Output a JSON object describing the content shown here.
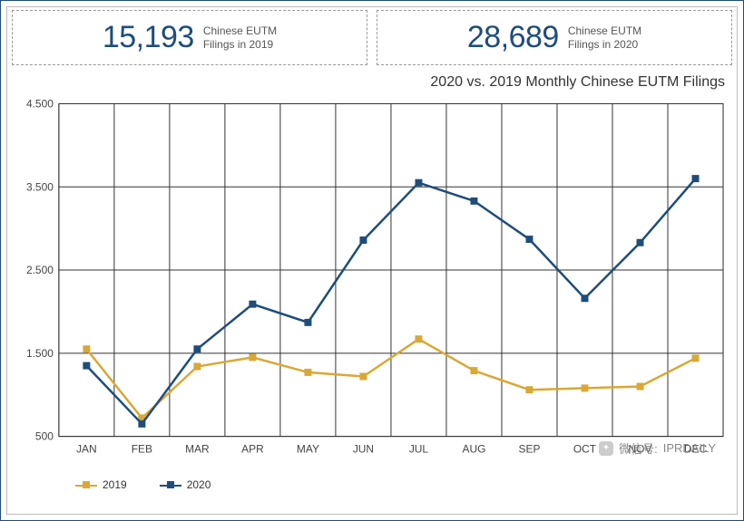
{
  "stat_boxes": [
    {
      "value": "15,193",
      "label_line1": "Chinese EUTM",
      "label_line2": "Filings in 2019"
    },
    {
      "value": "28,689",
      "label_line1": "Chinese EUTM",
      "label_line2": "Filings in 2020"
    }
  ],
  "chart": {
    "title": "2020 vs. 2019 Monthly Chinese EUTM Filings",
    "type": "line",
    "categories": [
      "JAN",
      "FEB",
      "MAR",
      "APR",
      "MAY",
      "JUN",
      "JUL",
      "AUG",
      "SEP",
      "OCT",
      "NOV",
      "DEC"
    ],
    "y_ticks": [
      500,
      1500,
      2500,
      3500,
      4500
    ],
    "y_tick_labels": [
      "500",
      "1.500",
      "2.500",
      "3.500",
      "4.500"
    ],
    "ylim": [
      500,
      4500
    ],
    "series": [
      {
        "name": "2019",
        "color": "#d9a836",
        "values": [
          1550,
          720,
          1340,
          1450,
          1270,
          1220,
          1670,
          1290,
          1060,
          1080,
          1100,
          1440
        ],
        "line_width": 2.5,
        "marker": "square",
        "marker_size": 8
      },
      {
        "name": "2020",
        "color": "#1e4d7b",
        "values": [
          1350,
          650,
          1550,
          2090,
          1870,
          2860,
          3550,
          3330,
          2870,
          2160,
          2830,
          3600
        ],
        "line_width": 2.5,
        "marker": "square",
        "marker_size": 8
      }
    ],
    "grid_color": "#333333",
    "background_color": "#ffffff",
    "plot_border_color": "#333333"
  },
  "legend": {
    "items": [
      {
        "label": "2019",
        "color": "#d9a836"
      },
      {
        "label": "2020",
        "color": "#1e4d7b"
      }
    ]
  },
  "watermark": {
    "prefix": "微信号:",
    "id": "IPRDAILY"
  }
}
